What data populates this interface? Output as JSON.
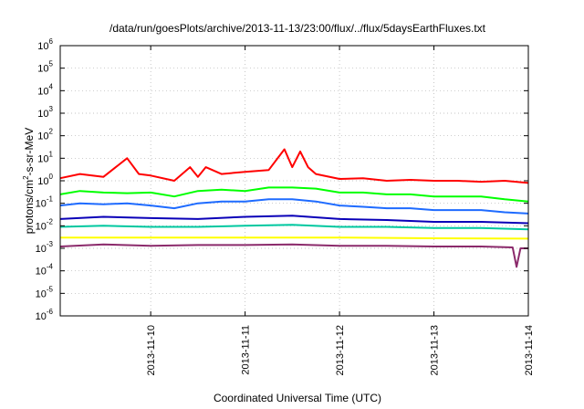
{
  "chart_data": {
    "type": "line",
    "title": "/data/run/goesPlots/archive/2013-11-13/23:00/flux/../flux/5daysEarthFluxes.txt",
    "xlabel": "Coordinated Universal Time (UTC)",
    "ylabel": {
      "prefix": "protons/cm",
      "sup": "2",
      "suffix": "-s-sr-MeV"
    },
    "yscale": "log",
    "ylim": [
      1e-06,
      1000000.0
    ],
    "y_ticks": [
      {
        "exp": "-6",
        "value": 1e-06
      },
      {
        "exp": "-5",
        "value": 1e-05
      },
      {
        "exp": "-4",
        "value": 0.0001
      },
      {
        "exp": "-3",
        "value": 0.001
      },
      {
        "exp": "-2",
        "value": 0.01
      },
      {
        "exp": "-1",
        "value": 0.1
      },
      {
        "exp": "0",
        "value": 1
      },
      {
        "exp": "1",
        "value": 10
      },
      {
        "exp": "2",
        "value": 100
      },
      {
        "exp": "3",
        "value": 1000
      },
      {
        "exp": "4",
        "value": 10000
      },
      {
        "exp": "5",
        "value": 100000
      },
      {
        "exp": "6",
        "value": 1000000
      }
    ],
    "y_tick_base": "10",
    "xlim": [
      "2013-11-09T01:00",
      "2013-11-14T00:00"
    ],
    "x_ticks": [
      "2013-11-10",
      "2013-11-11",
      "2013-11-12",
      "2013-11-13",
      "2013-11-14"
    ],
    "grid": true,
    "series": [
      {
        "color": "#ff0000",
        "x": [
          "2013-11-09T01:00",
          "2013-11-09T06:00",
          "2013-11-09T12:00",
          "2013-11-09T18:00",
          "2013-11-09T21:00",
          "2013-11-10T00:00",
          "2013-11-10T06:00",
          "2013-11-10T10:00",
          "2013-11-10T12:00",
          "2013-11-10T14:00",
          "2013-11-10T18:00",
          "2013-11-11T00:00",
          "2013-11-11T06:00",
          "2013-11-11T10:00",
          "2013-11-11T12:00",
          "2013-11-11T14:00",
          "2013-11-11T16:00",
          "2013-11-11T18:00",
          "2013-11-12T00:00",
          "2013-11-12T06:00",
          "2013-11-12T12:00",
          "2013-11-12T18:00",
          "2013-11-13T00:00",
          "2013-11-13T06:00",
          "2013-11-13T12:00",
          "2013-11-13T18:00",
          "2013-11-14T00:00"
        ],
        "values": [
          1.3,
          2.0,
          1.5,
          10,
          2.0,
          1.7,
          1.0,
          4.0,
          1.5,
          4.0,
          2.0,
          2.5,
          3.0,
          25,
          4.0,
          20,
          4.0,
          2.0,
          1.2,
          1.3,
          1.0,
          1.1,
          1.0,
          1.0,
          0.9,
          1.0,
          0.8
        ]
      },
      {
        "color": "#00ff00",
        "x": [
          "2013-11-09T01:00",
          "2013-11-09T06:00",
          "2013-11-09T12:00",
          "2013-11-09T18:00",
          "2013-11-10T00:00",
          "2013-11-10T06:00",
          "2013-11-10T12:00",
          "2013-11-10T18:00",
          "2013-11-11T00:00",
          "2013-11-11T06:00",
          "2013-11-11T12:00",
          "2013-11-11T18:00",
          "2013-11-12T00:00",
          "2013-11-12T06:00",
          "2013-11-12T12:00",
          "2013-11-12T18:00",
          "2013-11-13T00:00",
          "2013-11-13T06:00",
          "2013-11-13T12:00",
          "2013-11-13T18:00",
          "2013-11-14T00:00"
        ],
        "values": [
          0.25,
          0.35,
          0.3,
          0.28,
          0.3,
          0.2,
          0.35,
          0.4,
          0.35,
          0.5,
          0.5,
          0.45,
          0.3,
          0.3,
          0.25,
          0.25,
          0.2,
          0.2,
          0.2,
          0.15,
          0.12
        ]
      },
      {
        "color": "#1e6bff",
        "x": [
          "2013-11-09T01:00",
          "2013-11-09T06:00",
          "2013-11-09T12:00",
          "2013-11-09T18:00",
          "2013-11-10T00:00",
          "2013-11-10T06:00",
          "2013-11-10T12:00",
          "2013-11-10T18:00",
          "2013-11-11T00:00",
          "2013-11-11T06:00",
          "2013-11-11T12:00",
          "2013-11-11T18:00",
          "2013-11-12T00:00",
          "2013-11-12T06:00",
          "2013-11-12T12:00",
          "2013-11-12T18:00",
          "2013-11-13T00:00",
          "2013-11-13T06:00",
          "2013-11-13T12:00",
          "2013-11-13T18:00",
          "2013-11-14T00:00"
        ],
        "values": [
          0.08,
          0.1,
          0.09,
          0.1,
          0.08,
          0.06,
          0.1,
          0.12,
          0.12,
          0.15,
          0.15,
          0.12,
          0.08,
          0.07,
          0.06,
          0.06,
          0.05,
          0.05,
          0.05,
          0.04,
          0.035
        ]
      },
      {
        "color": "#0a00b8",
        "x": [
          "2013-11-09T01:00",
          "2013-11-09T12:00",
          "2013-11-10T00:00",
          "2013-11-10T12:00",
          "2013-11-11T00:00",
          "2013-11-11T12:00",
          "2013-11-12T00:00",
          "2013-11-12T12:00",
          "2013-11-13T00:00",
          "2013-11-13T12:00",
          "2013-11-14T00:00"
        ],
        "values": [
          0.02,
          0.025,
          0.022,
          0.02,
          0.025,
          0.028,
          0.02,
          0.018,
          0.015,
          0.015,
          0.013
        ]
      },
      {
        "color": "#00c8a0",
        "x": [
          "2013-11-09T01:00",
          "2013-11-09T12:00",
          "2013-11-10T00:00",
          "2013-11-10T12:00",
          "2013-11-11T00:00",
          "2013-11-11T12:00",
          "2013-11-12T00:00",
          "2013-11-12T12:00",
          "2013-11-13T00:00",
          "2013-11-13T12:00",
          "2013-11-14T00:00"
        ],
        "values": [
          0.009,
          0.01,
          0.009,
          0.009,
          0.01,
          0.011,
          0.009,
          0.009,
          0.008,
          0.008,
          0.007
        ]
      },
      {
        "color": "#ffff00",
        "x": [
          "2013-11-09T01:00",
          "2013-11-10T00:00",
          "2013-11-11T00:00",
          "2013-11-12T00:00",
          "2013-11-13T00:00",
          "2013-11-14T00:00"
        ],
        "values": [
          0.003,
          0.003,
          0.003,
          0.003,
          0.0028,
          0.0027
        ]
      },
      {
        "color": "#8b2a6b",
        "x": [
          "2013-11-09T01:00",
          "2013-11-09T12:00",
          "2013-11-10T00:00",
          "2013-11-10T12:00",
          "2013-11-11T00:00",
          "2013-11-11T12:00",
          "2013-11-12T00:00",
          "2013-11-12T12:00",
          "2013-11-13T00:00",
          "2013-11-13T12:00",
          "2013-11-13T20:00",
          "2013-11-13T21:00",
          "2013-11-13T22:00",
          "2013-11-14T00:00"
        ],
        "values": [
          0.0012,
          0.0015,
          0.0013,
          0.0014,
          0.0014,
          0.0015,
          0.0013,
          0.0013,
          0.0012,
          0.0012,
          0.0011,
          0.00015,
          0.001,
          0.001
        ]
      }
    ]
  }
}
